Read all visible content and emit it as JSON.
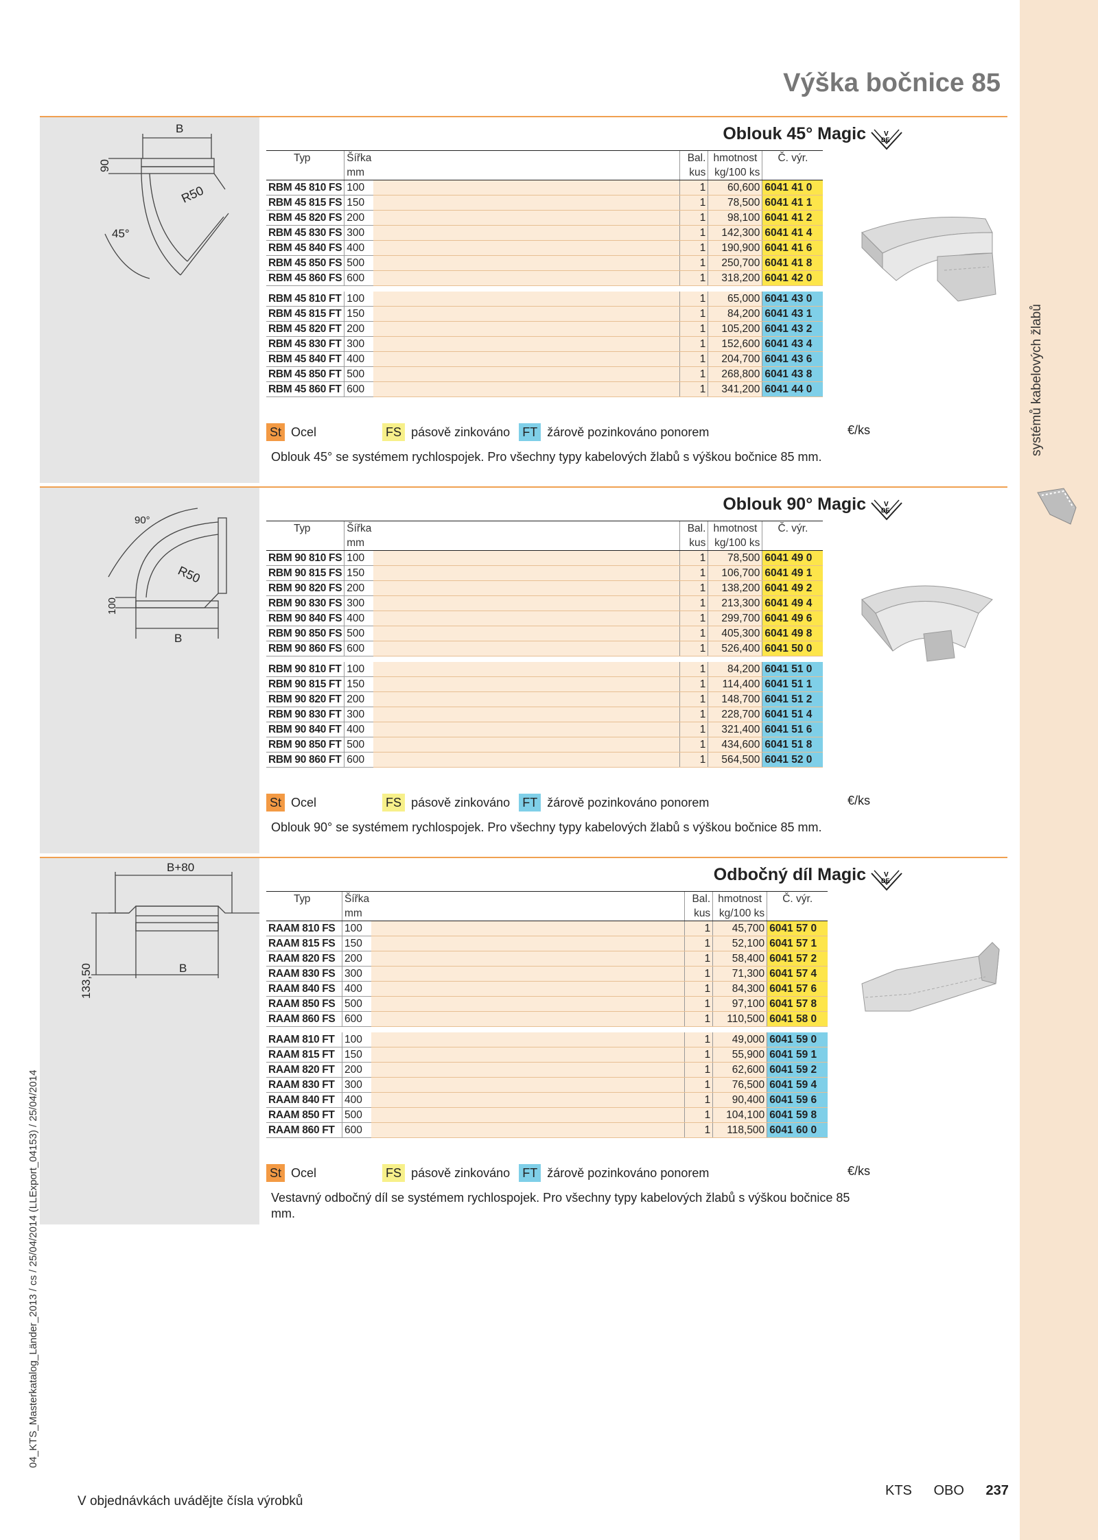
{
  "page_title": "Výška bočnice 85",
  "side_label": "systémů kabelových žlabů",
  "vertical_meta": "04_KTS_Masterkatalog_Länder_2013 / cs / 25/04/2014 (LLExport_04153) / 25/04/2014",
  "footer": {
    "note": "V objednávkách uvádějte čísla výrobků",
    "brand1": "KTS",
    "brand2": "OBO",
    "page": "237"
  },
  "header": {
    "typ": "Typ",
    "sirka": "Šířka",
    "mm": "mm",
    "bal": "Bal.",
    "kus": "kus",
    "hmotnost": "hmotnost",
    "kg": "kg/100 ks",
    "cvyr": "Č. výr."
  },
  "legend": {
    "st": "St",
    "ocel": "Ocel",
    "fs": "FS",
    "fs_text": "pásově zinkováno",
    "ft": "FT",
    "ft_text": "žárově pozinkováno ponorem",
    "per": "€/ks"
  },
  "vde": {
    "top": "V",
    "bottom": "DE"
  },
  "sections": [
    {
      "title": "Oblouk 45° Magic",
      "drawing": {
        "b": "B",
        "h": "90",
        "r": "R50",
        "angle": "45°"
      },
      "fs": [
        {
          "typ": "RBM 45 810 FS",
          "w": "100",
          "bal": "1",
          "kg": "60,600",
          "c": "6041 41 0"
        },
        {
          "typ": "RBM 45 815 FS",
          "w": "150",
          "bal": "1",
          "kg": "78,500",
          "c": "6041 41 1"
        },
        {
          "typ": "RBM 45 820 FS",
          "w": "200",
          "bal": "1",
          "kg": "98,100",
          "c": "6041 41 2"
        },
        {
          "typ": "RBM 45 830 FS",
          "w": "300",
          "bal": "1",
          "kg": "142,300",
          "c": "6041 41 4"
        },
        {
          "typ": "RBM 45 840 FS",
          "w": "400",
          "bal": "1",
          "kg": "190,900",
          "c": "6041 41 6"
        },
        {
          "typ": "RBM 45 850 FS",
          "w": "500",
          "bal": "1",
          "kg": "250,700",
          "c": "6041 41 8"
        },
        {
          "typ": "RBM 45 860 FS",
          "w": "600",
          "bal": "1",
          "kg": "318,200",
          "c": "6041 42 0"
        }
      ],
      "ft": [
        {
          "typ": "RBM 45 810 FT",
          "w": "100",
          "bal": "1",
          "kg": "65,000",
          "c": "6041 43 0"
        },
        {
          "typ": "RBM 45 815 FT",
          "w": "150",
          "bal": "1",
          "kg": "84,200",
          "c": "6041 43 1"
        },
        {
          "typ": "RBM 45 820 FT",
          "w": "200",
          "bal": "1",
          "kg": "105,200",
          "c": "6041 43 2"
        },
        {
          "typ": "RBM 45 830 FT",
          "w": "300",
          "bal": "1",
          "kg": "152,600",
          "c": "6041 43 4"
        },
        {
          "typ": "RBM 45 840 FT",
          "w": "400",
          "bal": "1",
          "kg": "204,700",
          "c": "6041 43 6"
        },
        {
          "typ": "RBM 45 850 FT",
          "w": "500",
          "bal": "1",
          "kg": "268,800",
          "c": "6041 43 8"
        },
        {
          "typ": "RBM 45 860 FT",
          "w": "600",
          "bal": "1",
          "kg": "341,200",
          "c": "6041 44 0"
        }
      ],
      "desc": "Oblouk 45° se systémem rychlospojek. Pro všechny typy kabelových žlabů s výškou bočnice 85 mm."
    },
    {
      "title": "Oblouk 90° Magic",
      "drawing": {
        "b": "B",
        "h": "100",
        "r": "R50",
        "angle": "90°"
      },
      "fs": [
        {
          "typ": "RBM 90 810 FS",
          "w": "100",
          "bal": "1",
          "kg": "78,500",
          "c": "6041 49 0"
        },
        {
          "typ": "RBM 90 815 FS",
          "w": "150",
          "bal": "1",
          "kg": "106,700",
          "c": "6041 49 1"
        },
        {
          "typ": "RBM 90 820 FS",
          "w": "200",
          "bal": "1",
          "kg": "138,200",
          "c": "6041 49 2"
        },
        {
          "typ": "RBM 90 830 FS",
          "w": "300",
          "bal": "1",
          "kg": "213,300",
          "c": "6041 49 4"
        },
        {
          "typ": "RBM 90 840 FS",
          "w": "400",
          "bal": "1",
          "kg": "299,700",
          "c": "6041 49 6"
        },
        {
          "typ": "RBM 90 850 FS",
          "w": "500",
          "bal": "1",
          "kg": "405,300",
          "c": "6041 49 8"
        },
        {
          "typ": "RBM 90 860 FS",
          "w": "600",
          "bal": "1",
          "kg": "526,400",
          "c": "6041 50 0"
        }
      ],
      "ft": [
        {
          "typ": "RBM 90 810 FT",
          "w": "100",
          "bal": "1",
          "kg": "84,200",
          "c": "6041 51 0"
        },
        {
          "typ": "RBM 90 815 FT",
          "w": "150",
          "bal": "1",
          "kg": "114,400",
          "c": "6041 51 1"
        },
        {
          "typ": "RBM 90 820 FT",
          "w": "200",
          "bal": "1",
          "kg": "148,700",
          "c": "6041 51 2"
        },
        {
          "typ": "RBM 90 830 FT",
          "w": "300",
          "bal": "1",
          "kg": "228,700",
          "c": "6041 51 4"
        },
        {
          "typ": "RBM 90 840 FT",
          "w": "400",
          "bal": "1",
          "kg": "321,400",
          "c": "6041 51 6"
        },
        {
          "typ": "RBM 90 850 FT",
          "w": "500",
          "bal": "1",
          "kg": "434,600",
          "c": "6041 51 8"
        },
        {
          "typ": "RBM 90 860 FT",
          "w": "600",
          "bal": "1",
          "kg": "564,500",
          "c": "6041 52 0"
        }
      ],
      "desc": "Oblouk 90° se systémem rychlospojek. Pro všechny typy kabelových žlabů s výškou bočnice 85 mm."
    },
    {
      "title": "Odbočný díl Magic",
      "drawing": {
        "b": "B",
        "top": "B+80",
        "h": "133,50"
      },
      "fs": [
        {
          "typ": "RAAM 810 FS",
          "w": "100",
          "bal": "1",
          "kg": "45,700",
          "c": "6041 57 0"
        },
        {
          "typ": "RAAM 815 FS",
          "w": "150",
          "bal": "1",
          "kg": "52,100",
          "c": "6041 57 1"
        },
        {
          "typ": "RAAM 820 FS",
          "w": "200",
          "bal": "1",
          "kg": "58,400",
          "c": "6041 57 2"
        },
        {
          "typ": "RAAM 830 FS",
          "w": "300",
          "bal": "1",
          "kg": "71,300",
          "c": "6041 57 4"
        },
        {
          "typ": "RAAM 840 FS",
          "w": "400",
          "bal": "1",
          "kg": "84,300",
          "c": "6041 57 6"
        },
        {
          "typ": "RAAM 850 FS",
          "w": "500",
          "bal": "1",
          "kg": "97,100",
          "c": "6041 57 8"
        },
        {
          "typ": "RAAM 860 FS",
          "w": "600",
          "bal": "1",
          "kg": "110,500",
          "c": "6041 58 0"
        }
      ],
      "ft": [
        {
          "typ": "RAAM 810 FT",
          "w": "100",
          "bal": "1",
          "kg": "49,000",
          "c": "6041 59 0"
        },
        {
          "typ": "RAAM 815 FT",
          "w": "150",
          "bal": "1",
          "kg": "55,900",
          "c": "6041 59 1"
        },
        {
          "typ": "RAAM 820 FT",
          "w": "200",
          "bal": "1",
          "kg": "62,600",
          "c": "6041 59 2"
        },
        {
          "typ": "RAAM 830 FT",
          "w": "300",
          "bal": "1",
          "kg": "76,500",
          "c": "6041 59 4"
        },
        {
          "typ": "RAAM 840 FT",
          "w": "400",
          "bal": "1",
          "kg": "90,400",
          "c": "6041 59 6"
        },
        {
          "typ": "RAAM 850 FT",
          "w": "500",
          "bal": "1",
          "kg": "104,100",
          "c": "6041 59 8"
        },
        {
          "typ": "RAAM 860 FT",
          "w": "600",
          "bal": "1",
          "kg": "118,500",
          "c": "6041 60 0"
        }
      ],
      "desc": "Vestavný odbočný díl se systémem rychlospojek. Pro všechny typy kabelových žlabů s výškou bočnice 85 mm."
    }
  ]
}
